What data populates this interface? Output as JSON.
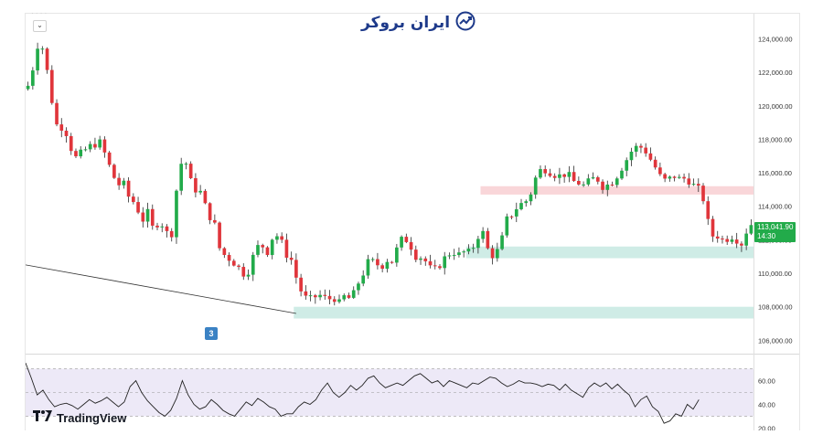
{
  "brand": {
    "name": "ایران بروکر",
    "icon": "chart-trend-icon"
  },
  "legend": {
    "collapse_glyph": "⌄",
    "symbol_text": "· · · ·"
  },
  "colors": {
    "up": "#22ab4a",
    "down": "#e0353b",
    "wick": "#2b2b2b",
    "supply_zone": "#f9d6d9",
    "demand_zone": "#cfece6",
    "rsi_band": "#ede9f7",
    "rsi_line": "#222222",
    "badge": "#22ab4a"
  },
  "current_price": {
    "value": "113,041.90",
    "countdown": "14:30"
  },
  "marker": {
    "label": "3"
  },
  "watermark": {
    "text": "TradingView",
    "icon": "tradingview-logo-icon"
  },
  "chart_data": {
    "type": "candlestick",
    "price_axis": {
      "ylim": [
        105200,
        125500
      ],
      "ticks": [
        "124,000.00",
        "122,000.00",
        "120,000.00",
        "118,000.00",
        "116,000.00",
        "114,000.00",
        "112,000.00",
        "110,000.00",
        "108,000.00",
        "106,000.00"
      ],
      "tick_values": [
        124000,
        122000,
        120000,
        118000,
        116000,
        114000,
        112000,
        110000,
        108000,
        106000
      ]
    },
    "bar_count": 152,
    "anchors": [
      [
        0,
        121200
      ],
      [
        2,
        122500
      ],
      [
        3,
        123500
      ],
      [
        4,
        124100
      ],
      [
        6,
        122500
      ],
      [
        8,
        120300
      ],
      [
        10,
        118500
      ],
      [
        12,
        118900
      ],
      [
        14,
        117600
      ],
      [
        16,
        116900
      ],
      [
        18,
        117200
      ],
      [
        20,
        117500
      ],
      [
        22,
        117700
      ],
      [
        24,
        117800
      ],
      [
        26,
        117000
      ],
      [
        28,
        116000
      ],
      [
        30,
        115300
      ],
      [
        32,
        115300
      ],
      [
        34,
        114400
      ],
      [
        36,
        114200
      ],
      [
        38,
        113100
      ],
      [
        40,
        113600
      ],
      [
        42,
        112500
      ],
      [
        44,
        113300
      ],
      [
        46,
        112400
      ],
      [
        48,
        112400
      ],
      [
        50,
        115600
      ],
      [
        52,
        117200
      ],
      [
        54,
        115600
      ],
      [
        56,
        115000
      ],
      [
        58,
        114800
      ],
      [
        60,
        113500
      ],
      [
        62,
        113200
      ],
      [
        64,
        111500
      ],
      [
        66,
        111000
      ],
      [
        68,
        110800
      ],
      [
        70,
        110400
      ],
      [
        72,
        110000
      ],
      [
        74,
        110200
      ],
      [
        76,
        111500
      ],
      [
        78,
        111700
      ],
      [
        80,
        111300
      ],
      [
        82,
        112300
      ],
      [
        84,
        112200
      ],
      [
        86,
        111200
      ],
      [
        88,
        110800
      ],
      [
        90,
        109500
      ],
      [
        92,
        108600
      ],
      [
        94,
        108400
      ],
      [
        96,
        108600
      ],
      [
        98,
        108700
      ],
      [
        100,
        108400
      ],
      [
        102,
        108600
      ],
      [
        104,
        108200
      ],
      [
        106,
        108700
      ],
      [
        108,
        108400
      ],
      [
        110,
        109300
      ],
      [
        112,
        110000
      ],
      [
        114,
        110800
      ],
      [
        116,
        110600
      ],
      [
        118,
        110400
      ],
      [
        120,
        110800
      ],
      [
        122,
        110700
      ],
      [
        124,
        111900
      ],
      [
        126,
        112100
      ],
      [
        128,
        111600
      ],
      [
        130,
        110900
      ],
      [
        132,
        111000
      ],
      [
        134,
        110300
      ],
      [
        136,
        110200
      ],
      [
        138,
        110600
      ],
      [
        140,
        111100
      ],
      [
        142,
        111300
      ],
      [
        144,
        111100
      ],
      [
        146,
        111300
      ],
      [
        148,
        111200
      ],
      [
        150,
        112200
      ],
      [
        152,
        112400
      ],
      [
        154,
        111200
      ],
      [
        156,
        111000
      ],
      [
        158,
        111800
      ],
      [
        160,
        113200
      ],
      [
        162,
        113600
      ],
      [
        164,
        114100
      ],
      [
        166,
        114200
      ],
      [
        168,
        114800
      ],
      [
        170,
        115900
      ],
      [
        172,
        116300
      ],
      [
        174,
        116100
      ],
      [
        176,
        115900
      ],
      [
        178,
        115800
      ],
      [
        180,
        116000
      ],
      [
        182,
        115500
      ],
      [
        184,
        115400
      ],
      [
        186,
        115200
      ],
      [
        188,
        115600
      ],
      [
        190,
        115700
      ],
      [
        192,
        115200
      ],
      [
        194,
        115300
      ],
      [
        196,
        115600
      ],
      [
        198,
        116200
      ],
      [
        200,
        116800
      ],
      [
        202,
        117400
      ],
      [
        204,
        117600
      ],
      [
        206,
        117400
      ],
      [
        208,
        116800
      ],
      [
        210,
        116200
      ],
      [
        212,
        115500
      ],
      [
        214,
        115600
      ],
      [
        216,
        115800
      ],
      [
        218,
        115600
      ],
      [
        220,
        115700
      ],
      [
        222,
        115300
      ],
      [
        224,
        115000
      ],
      [
        226,
        114300
      ],
      [
        228,
        112200
      ],
      [
        230,
        112300
      ],
      [
        232,
        112000
      ],
      [
        234,
        112100
      ],
      [
        236,
        112300
      ],
      [
        238,
        111600
      ],
      [
        240,
        112500
      ],
      [
        242,
        113040
      ]
    ],
    "zones": [
      {
        "name": "supply",
        "from_bar": 95,
        "to_bar": 152,
        "ymin": 114700,
        "ymax": 115200
      },
      {
        "name": "demand-upper",
        "from_bar": 92,
        "to_bar": 152,
        "ymin": 110900,
        "ymax": 111600
      },
      {
        "name": "demand-lower",
        "from_bar": 56,
        "to_bar": 152,
        "ymin": 107300,
        "ymax": 108000
      }
    ],
    "trendline": {
      "from": [
        0,
        110500
      ],
      "to": [
        56,
        107600
      ]
    },
    "rsi": {
      "ylim": [
        18,
        82
      ],
      "ticks": [
        "60.00",
        "40.00",
        "20.00"
      ],
      "tick_values": [
        60,
        40,
        20
      ],
      "band": [
        30,
        70
      ],
      "values": [
        75,
        62,
        48,
        52,
        44,
        38,
        40,
        41,
        39,
        36,
        40,
        44,
        41,
        43,
        46,
        42,
        38,
        42,
        55,
        60,
        50,
        43,
        38,
        33,
        30,
        35,
        45,
        60,
        48,
        40,
        36,
        38,
        44,
        40,
        35,
        32,
        30,
        36,
        42,
        39,
        45,
        42,
        38,
        36,
        30,
        32,
        32,
        38,
        42,
        40,
        44,
        52,
        58,
        50,
        46,
        50,
        56,
        52,
        56,
        62,
        64,
        58,
        54,
        56,
        58,
        56,
        60,
        64,
        66,
        62,
        58,
        60,
        55,
        60,
        58,
        56,
        54,
        58,
        57,
        60,
        63,
        62,
        58,
        55,
        57,
        60,
        58,
        58,
        57,
        55,
        57,
        56,
        52,
        57,
        52,
        49,
        46,
        54,
        58,
        55,
        58,
        53,
        57,
        52,
        48,
        38,
        44,
        47,
        38,
        34,
        24,
        26,
        32,
        30,
        40,
        36,
        44
      ]
    }
  }
}
